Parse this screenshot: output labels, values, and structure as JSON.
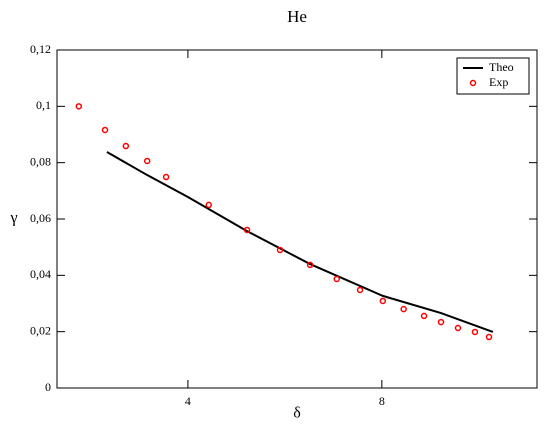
{
  "chart_data": {
    "type": "line",
    "title": "He",
    "xlabel": "δ",
    "ylabel": "γ",
    "xlim": [
      1.3,
      11.2
    ],
    "xticks": [
      4,
      8
    ],
    "ylim": [
      0,
      0.12
    ],
    "yticks": [
      {
        "value": 0,
        "label": "0"
      },
      {
        "value": 0.02,
        "label": "0,02"
      },
      {
        "value": 0.04,
        "label": "0,04"
      },
      {
        "value": 0.06,
        "label": "0,06"
      },
      {
        "value": 0.08,
        "label": "0,08"
      },
      {
        "value": 0.1,
        "label": "0,1"
      },
      {
        "value": 0.12,
        "label": "0,12"
      }
    ],
    "legend": "upper right",
    "series": [
      {
        "name": "Theo",
        "color": "#000000",
        "style": "line",
        "x": [
          2.33,
          3.16,
          4.0,
          5.22,
          6.52,
          8.02,
          9.22,
          10.29
        ],
        "values": [
          0.0838,
          0.0756,
          0.0678,
          0.0557,
          0.044,
          0.0327,
          0.0266,
          0.0199
        ]
      },
      {
        "name": "Exp",
        "color": "#ff0000",
        "style": "markers",
        "x": [
          1.75,
          2.29,
          2.72,
          3.16,
          3.55,
          4.43,
          5.22,
          5.9,
          6.52,
          7.07,
          7.55,
          8.02,
          8.45,
          8.87,
          9.22,
          9.57,
          9.92,
          10.21
        ],
        "values": [
          0.1,
          0.0916,
          0.0859,
          0.0806,
          0.0749,
          0.065,
          0.0561,
          0.049,
          0.0437,
          0.0387,
          0.0348,
          0.0309,
          0.028,
          0.0256,
          0.0234,
          0.0213,
          0.0199,
          0.0181
        ]
      }
    ]
  }
}
